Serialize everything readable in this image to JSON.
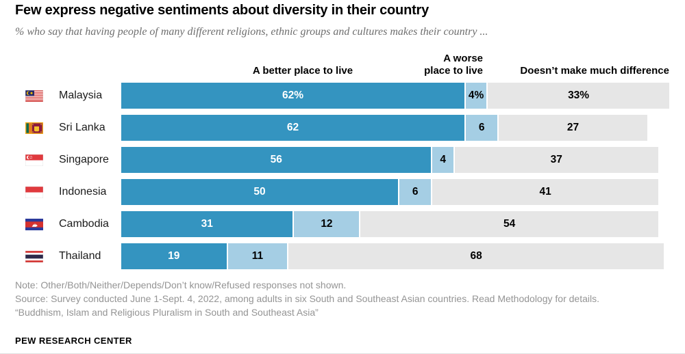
{
  "title": "Few express negative sentiments about diversity in their country",
  "subtitle": "% who say that having people of many different religions, ethnic groups and cultures makes their country ...",
  "headers": {
    "better": "A better place to live",
    "worse_line1": "A worse",
    "worse_line2": "place to live",
    "diff": "Doesn’t make much difference"
  },
  "chart_data": {
    "type": "bar",
    "orientation": "horizontal",
    "stacked": true,
    "title": "Few express negative sentiments about diversity in their country",
    "categories": [
      "Malaysia",
      "Sri Lanka",
      "Singapore",
      "Indonesia",
      "Cambodia",
      "Thailand"
    ],
    "series": [
      {
        "name": "A better place to live",
        "color": "#3494c0",
        "values": [
          62,
          62,
          56,
          50,
          31,
          19
        ],
        "labels": [
          "62%",
          "62",
          "56",
          "50",
          "31",
          "19"
        ]
      },
      {
        "name": "A worse place to live",
        "color": "#a5cee4",
        "values": [
          4,
          6,
          4,
          6,
          12,
          11
        ],
        "labels": [
          "4%",
          "6",
          "4",
          "6",
          "12",
          "11"
        ]
      },
      {
        "name": "Doesn’t make much difference",
        "color": "#e6e6e6",
        "values": [
          33,
          27,
          37,
          41,
          54,
          68
        ],
        "labels": [
          "33%",
          "27",
          "37",
          "41",
          "54",
          "68"
        ]
      }
    ],
    "xlim": [
      0,
      100
    ],
    "grid": false,
    "legend_position": "top-as-column-headers"
  },
  "notes": {
    "note": "Note: Other/Both/Neither/Depends/Don’t know/Refused responses not shown.",
    "source": "Source: Survey conducted June 1-Sept. 4, 2022, among adults in six South and Southeast Asian countries. Read Methodology for details.",
    "report": "“Buddhism, Islam and Religious Pluralism in South and Southeast Asia”",
    "brand": "PEW RESEARCH CENTER"
  },
  "colors": {
    "better": "#3494c0",
    "worse": "#a5cee4",
    "diff": "#e6e6e6",
    "subtitle_text": "#6e6e6e",
    "note_text": "#949494"
  }
}
